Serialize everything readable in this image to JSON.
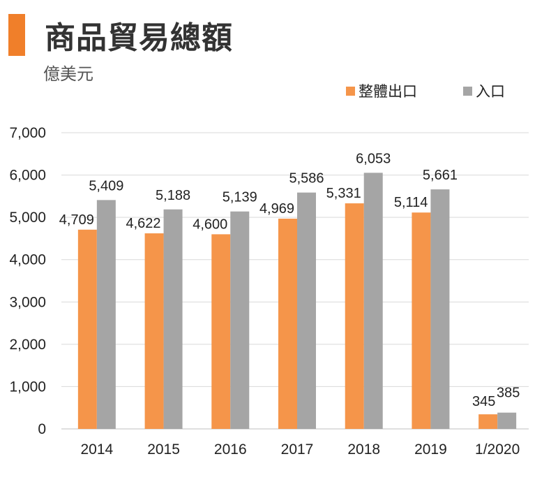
{
  "header": {
    "title": "商品貿易總額",
    "unit": "億美元"
  },
  "colors": {
    "accent": "#f07f2a",
    "export": "#f5954a",
    "import": "#a5a5a5",
    "grid": "#d9d9d9",
    "axis": "#bfbfbf"
  },
  "chart_data": {
    "type": "bar",
    "title": "商品貿易總額",
    "ylabel": "億美元",
    "xlabel": "",
    "categories": [
      "2014",
      "2015",
      "2016",
      "2017",
      "2018",
      "2019",
      "1/2020"
    ],
    "series": [
      {
        "name": "整體出口",
        "color": "#f5954a",
        "values": [
          4709,
          4622,
          4600,
          4969,
          5331,
          5114,
          345
        ],
        "labels": [
          "4,709",
          "4,622",
          "4,600",
          "4,969",
          "5,331",
          "5,114",
          "345"
        ]
      },
      {
        "name": "入口",
        "color": "#a5a5a5",
        "values": [
          5409,
          5188,
          5139,
          5586,
          6053,
          5661,
          385
        ],
        "labels": [
          "5,409",
          "5,188",
          "5,139",
          "5,586",
          "6,053",
          "5,661",
          "385"
        ]
      }
    ],
    "ylim": [
      0,
      7000
    ],
    "yticks": [
      0,
      1000,
      2000,
      3000,
      4000,
      5000,
      6000,
      7000
    ],
    "ytick_labels": [
      "0",
      "1,000",
      "2,000",
      "3,000",
      "4,000",
      "5,000",
      "6,000",
      "7,000"
    ],
    "grid": true,
    "legend_position": "top-right"
  }
}
